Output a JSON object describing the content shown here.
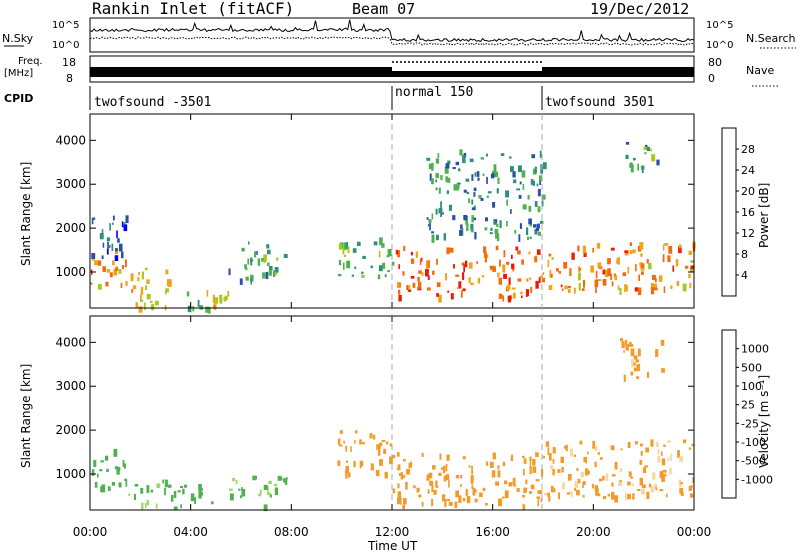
{
  "header": {
    "title": "Rankin Inlet (fitACF)",
    "beam": "Beam 07",
    "date": "19/Dec/2012"
  },
  "noise_panel": {
    "left_label": "N.Sky",
    "right_label": "N.Search",
    "left_ticks": [
      "10^5",
      "10^0"
    ],
    "right_ticks": [
      "10^5",
      "10^0"
    ]
  },
  "freq_panel": {
    "left_label_line1": "Freq.",
    "left_label_line2": "[MHz]",
    "left_ticks": [
      "18",
      "8"
    ],
    "right_ticks": [
      "80",
      "0"
    ],
    "right_label": "Nave"
  },
  "cpid": {
    "label": "CPID",
    "segments": [
      {
        "name": "twofsound -3501",
        "start_hour": 0,
        "end_hour": 12
      },
      {
        "name": "normal 150",
        "start_hour": 12,
        "end_hour": 18
      },
      {
        "name": "twofsound 3501",
        "start_hour": 18,
        "end_hour": 24
      }
    ]
  },
  "time_axis": {
    "label": "Time UT",
    "ticks": [
      "00:00",
      "04:00",
      "08:00",
      "12:00",
      "16:00",
      "20:00",
      "00:00"
    ],
    "tick_hours": [
      0,
      4,
      8,
      12,
      16,
      20,
      24
    ]
  },
  "colors": {
    "dashed_marker": "#aaaaaa",
    "power_scale": [
      "#0000ff",
      "#2a4fa8",
      "#2f8f7a",
      "#4fb04f",
      "#a8c81e",
      "#f2a418",
      "#f46a10",
      "#ee1a08"
    ],
    "velocity_scale": [
      "#2244bb",
      "#2f8f7a",
      "#4fb04f",
      "#9ed86a",
      "#bfbfbf",
      "#f4d8a0",
      "#f49a28",
      "#f46a10",
      "#ee1a08"
    ]
  },
  "chart_data": [
    {
      "type": "heatmap",
      "panel": "power",
      "xlabel": "Time UT",
      "ylabel": "Slant Range [km]",
      "xlim": [
        0,
        24
      ],
      "ylim": [
        180,
        4600
      ],
      "yticks": [
        1000,
        2000,
        3000,
        4000
      ],
      "colorbar": {
        "label": "Power [dB]",
        "ticks": [
          "28",
          "24",
          "20",
          "16",
          "12",
          "8",
          "4"
        ],
        "range": [
          0,
          30
        ]
      },
      "regions": [
        {
          "x": [
            0.0,
            1.5
          ],
          "y": [
            700,
            1600
          ],
          "value": 24
        },
        {
          "x": [
            1.5,
            3.2
          ],
          "y": [
            180,
            1100
          ],
          "value": 20
        },
        {
          "x": [
            0.0,
            1.6
          ],
          "y": [
            1300,
            2300
          ],
          "value": 8
        },
        {
          "x": [
            3.7,
            4.9
          ],
          "y": [
            200,
            650
          ],
          "value": 16
        },
        {
          "x": [
            4.8,
            5.6
          ],
          "y": [
            180,
            600
          ],
          "value": 22
        },
        {
          "x": [
            5.5,
            7.8
          ],
          "y": [
            850,
            1700
          ],
          "value": 12
        },
        {
          "x": [
            9.8,
            12.0
          ],
          "y": [
            900,
            1800
          ],
          "value": 14
        },
        {
          "x": [
            12.1,
            18.0
          ],
          "y": [
            450,
            1600
          ],
          "value": 26
        },
        {
          "x": [
            18.0,
            24.0
          ],
          "y": [
            600,
            1700
          ],
          "value": 24
        },
        {
          "x": [
            13.3,
            18.0
          ],
          "y": [
            1800,
            3800
          ],
          "value": 10
        },
        {
          "x": [
            21.0,
            22.7
          ],
          "y": [
            3400,
            4000
          ],
          "value": 12
        }
      ]
    },
    {
      "type": "heatmap",
      "panel": "velocity",
      "xlabel": "Time UT",
      "ylabel": "Slant Range [km]",
      "xlim": [
        0,
        24
      ],
      "ylim": [
        180,
        4600
      ],
      "yticks": [
        1000,
        2000,
        3000,
        4000
      ],
      "colorbar": {
        "label": "Velocity [m s⁻¹]",
        "ticks": [
          "1000",
          "500",
          "100",
          "25",
          "-25",
          "-100",
          "-500",
          "-1000"
        ],
        "range": [
          -1250,
          1250
        ]
      },
      "regions": [
        {
          "x": [
            0.0,
            1.5
          ],
          "y": [
            700,
            1600
          ],
          "value": 300
        },
        {
          "x": [
            1.5,
            3.0
          ],
          "y": [
            300,
            900
          ],
          "value": 100
        },
        {
          "x": [
            3.0,
            5.0
          ],
          "y": [
            250,
            800
          ],
          "value": 200
        },
        {
          "x": [
            5.5,
            7.8
          ],
          "y": [
            300,
            1000
          ],
          "value": 150
        },
        {
          "x": [
            9.8,
            12.0
          ],
          "y": [
            1000,
            2000
          ],
          "value": -300
        },
        {
          "x": [
            12.0,
            18.0
          ],
          "y": [
            300,
            1500
          ],
          "value": -300
        },
        {
          "x": [
            18.0,
            24.0
          ],
          "y": [
            500,
            1800
          ],
          "value": -150
        },
        {
          "x": [
            21.0,
            22.7
          ],
          "y": [
            3200,
            4100
          ],
          "value": -200
        }
      ]
    }
  ]
}
